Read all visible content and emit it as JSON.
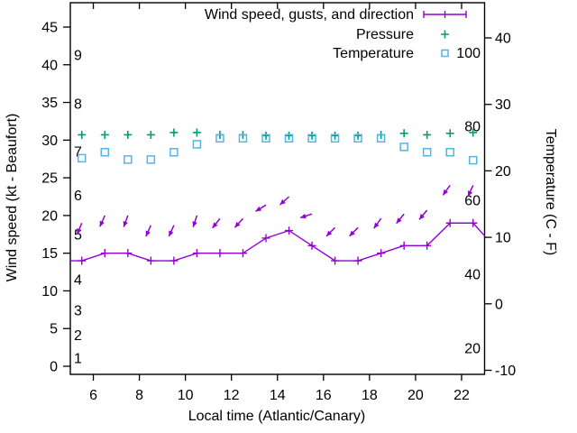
{
  "figure": {
    "background": "#ffffff",
    "border_color": "#000000",
    "text_color": "#000000"
  },
  "chart_data": {
    "type": "line",
    "title": "",
    "xlabel": "Local time (Atlantic/Canary)",
    "ylabel_left": "Wind speed (kt - Beaufort)",
    "ylabel_right": "Temperature (C - F)",
    "x_range": [
      5,
      23
    ],
    "y_left_range": [
      0,
      45
    ],
    "y_right_range": [
      -10,
      40
    ],
    "grid": false,
    "legend_position": "top-right-inside",
    "x_ticks": [
      6,
      8,
      10,
      12,
      14,
      16,
      18,
      20,
      22
    ],
    "y_left_ticks": [
      0,
      5,
      10,
      15,
      20,
      25,
      30,
      35,
      40,
      45
    ],
    "y_right_ticks": [
      -10,
      0,
      10,
      20,
      30,
      40
    ],
    "beaufort_inside_labels": [
      {
        "force": "9",
        "kt": 41.3
      },
      {
        "force": "8",
        "kt": 34.8
      },
      {
        "force": "7",
        "kt": 28.5
      },
      {
        "force": "6",
        "kt": 22.7
      },
      {
        "force": "5",
        "kt": 17.5
      },
      {
        "force": "4",
        "kt": 11.5
      },
      {
        "force": "3",
        "kt": 7.4
      },
      {
        "force": "2",
        "kt": 4.1
      },
      {
        "force": "1",
        "kt": 1.1
      }
    ],
    "fahrenheit_inside_labels": [
      {
        "f": "100",
        "c": 37.78
      },
      {
        "f": "80",
        "c": 26.67
      },
      {
        "f": "60",
        "c": 15.56
      },
      {
        "f": "40",
        "c": 4.44
      },
      {
        "f": "20",
        "c": -6.67
      }
    ],
    "x": [
      5.5,
      6.5,
      7.5,
      8.5,
      9.5,
      10.5,
      11.5,
      12.5,
      13.5,
      14.5,
      15.5,
      16.5,
      17.5,
      18.5,
      19.5,
      20.5,
      21.5,
      22.5
    ],
    "series": [
      {
        "name": "Wind speed, gusts, and direction",
        "axis": "left",
        "color": "#9400d3",
        "style": "line-with-plus-markers-and-direction-vectors",
        "values": [
          14,
          15,
          15,
          14,
          14,
          15,
          15,
          15,
          17,
          18,
          16,
          14,
          14,
          15,
          16,
          16,
          19,
          19
        ],
        "edge_start": {
          "x": 5,
          "y": 14
        },
        "edge_end": {
          "x": 23,
          "y": 17.3
        },
        "gusts_kt": [
          19,
          20,
          20,
          18.7,
          18.7,
          20,
          19.6,
          19.6,
          21.4,
          22.5,
          20.2,
          18.4,
          18.4,
          19.6,
          20.2,
          20.7,
          24,
          24
        ],
        "direction_from_deg": [
          23,
          24,
          20,
          24,
          24,
          18,
          38,
          42,
          58,
          48,
          72,
          45,
          45,
          36,
          39,
          40,
          36,
          25
        ]
      },
      {
        "name": "Pressure",
        "axis": "left",
        "color": "#009e73",
        "style": "plus-markers",
        "values": [
          30.7,
          30.7,
          30.7,
          30.7,
          31.0,
          31.0,
          30.7,
          30.7,
          30.6,
          30.6,
          30.6,
          30.6,
          30.6,
          30.7,
          30.9,
          30.7,
          30.9,
          31.0
        ]
      },
      {
        "name": "Temperature",
        "axis": "right",
        "color": "#56b4e9",
        "style": "open-square-markers",
        "values_c": [
          21.9,
          22.8,
          21.7,
          21.7,
          22.8,
          24.0,
          24.9,
          24.9,
          24.9,
          24.9,
          24.9,
          24.9,
          24.9,
          24.9,
          23.6,
          22.8,
          22.8,
          21.6
        ]
      }
    ],
    "legend": [
      "Wind speed, gusts, and direction",
      "Pressure",
      "Temperature"
    ]
  }
}
